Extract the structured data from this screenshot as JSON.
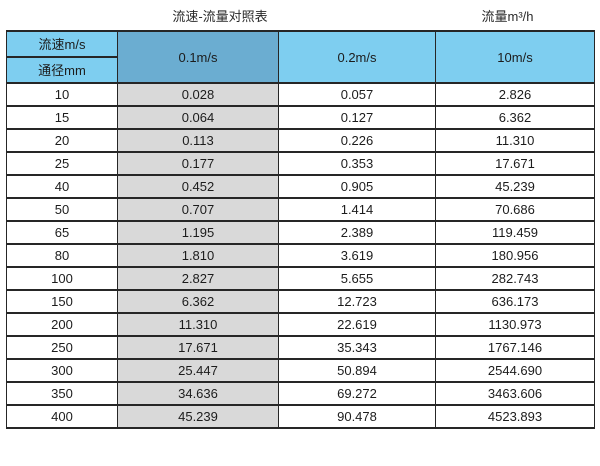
{
  "titles": {
    "main": "流速-流量对照表",
    "right": "流量m³/h"
  },
  "table": {
    "corner": {
      "top_label": "流速m/s",
      "bottom_label": "通径mm"
    },
    "velocity_headers": [
      "0.1m/s",
      "0.2m/s",
      "10m/s"
    ],
    "rows": [
      [
        "10",
        "0.028",
        "0.057",
        "2.826"
      ],
      [
        "15",
        "0.064",
        "0.127",
        "6.362"
      ],
      [
        "20",
        "0.113",
        "0.226",
        "11.310"
      ],
      [
        "25",
        "0.177",
        "0.353",
        "17.671"
      ],
      [
        "40",
        "0.452",
        "0.905",
        "45.239"
      ],
      [
        "50",
        "0.707",
        "1.414",
        "70.686"
      ],
      [
        "65",
        "1.195",
        "2.389",
        "119.459"
      ],
      [
        "80",
        "1.810",
        "3.619",
        "180.956"
      ],
      [
        "100",
        "2.827",
        "5.655",
        "282.743"
      ],
      [
        "150",
        "6.362",
        "12.723",
        "636.173"
      ],
      [
        "200",
        "11.310",
        "22.619",
        "1130.973"
      ],
      [
        "250",
        "17.671",
        "35.343",
        "1767.146"
      ],
      [
        "300",
        "25.447",
        "50.894",
        "2544.690"
      ],
      [
        "350",
        "34.636",
        "69.272",
        "3463.606"
      ],
      [
        "400",
        "45.239",
        "90.478",
        "4523.893"
      ]
    ]
  },
  "colors": {
    "header_light_blue": "#7ecef0",
    "header_medium_blue": "#6badd1",
    "column_gray": "#d9d9d9",
    "border_dark": "#262626"
  }
}
